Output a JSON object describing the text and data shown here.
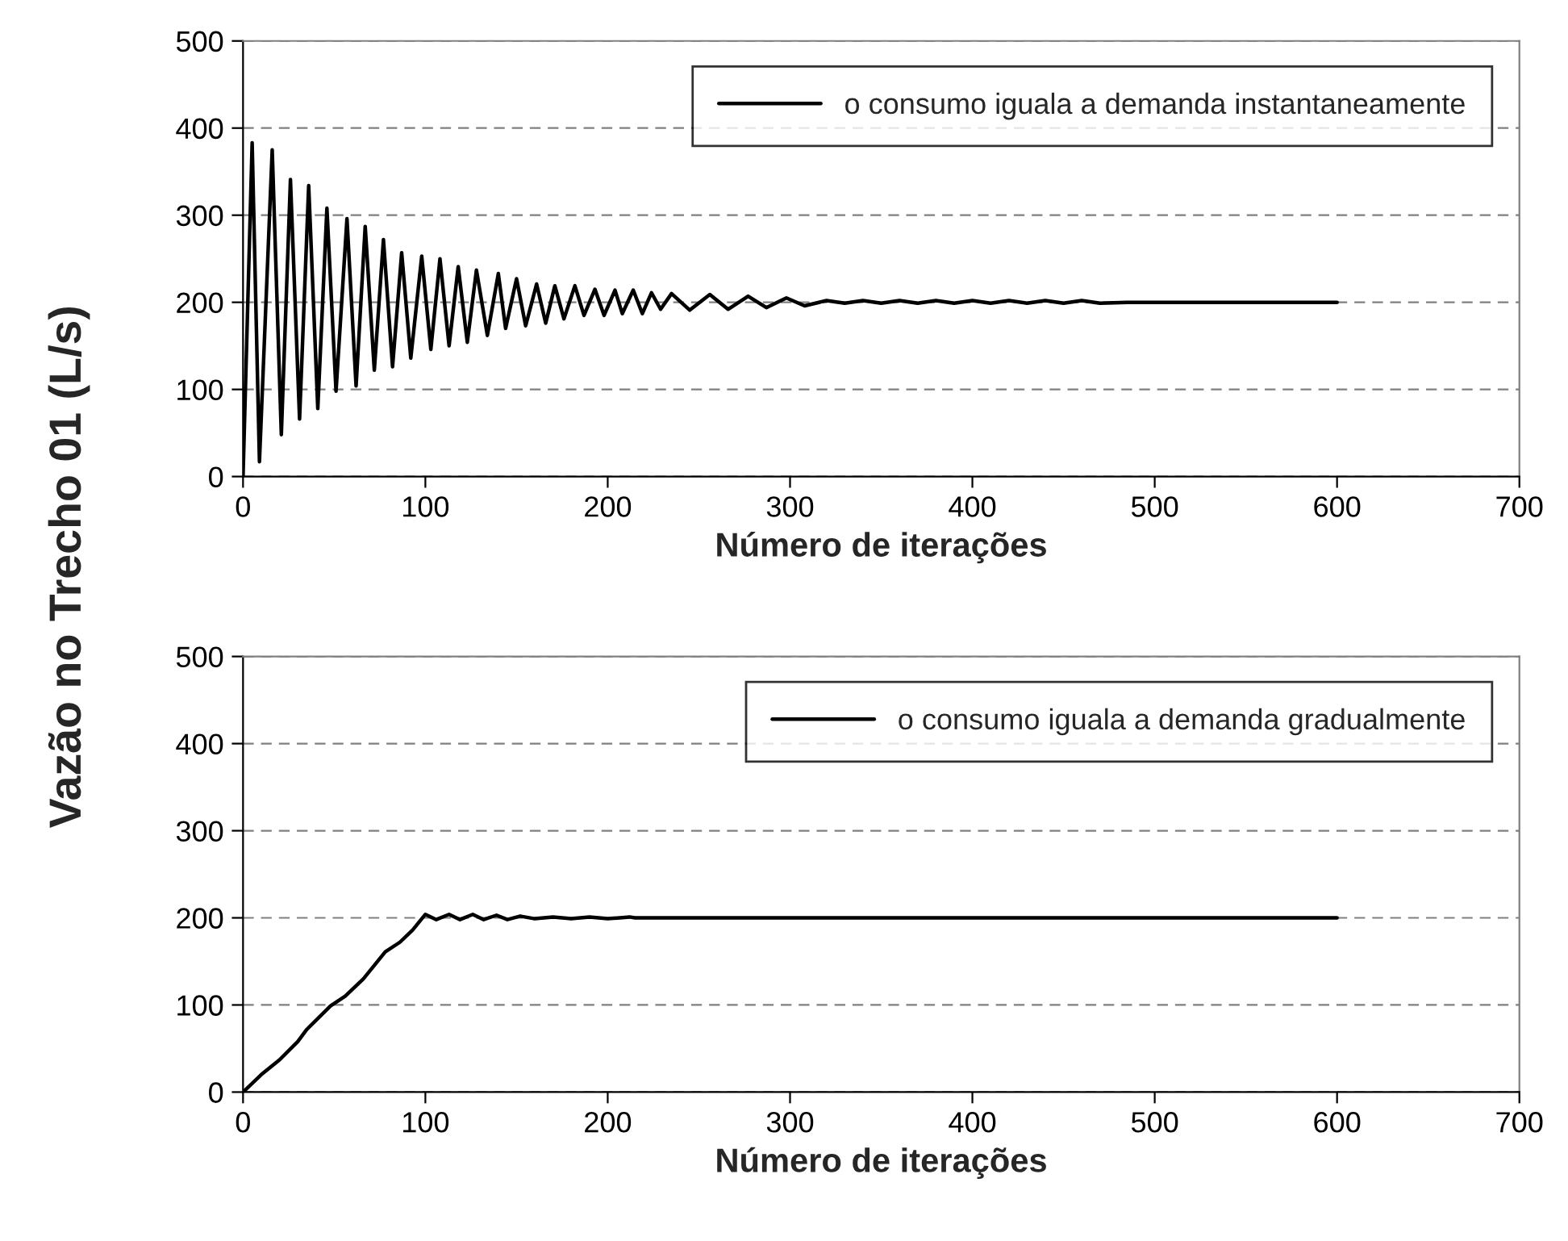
{
  "chart_data": [
    {
      "type": "line",
      "xlabel": "Número de iterações",
      "ylabel": "Vazão no Trecho 01 (L/s)",
      "xlim": [
        0,
        700
      ],
      "ylim": [
        0,
        500
      ],
      "xticks": [
        0,
        100,
        200,
        300,
        400,
        500,
        600,
        700
      ],
      "yticks": [
        0,
        100,
        200,
        300,
        400,
        500
      ],
      "grid": "y",
      "legend": "top right",
      "line_style": "solid",
      "marker": "none",
      "series": [
        {
          "name": "o consumo iguala a demanda instantaneamente",
          "color": "#000000",
          "x": [
            0,
            5,
            9,
            16,
            21,
            26,
            31,
            36,
            41,
            46,
            51,
            57,
            62,
            67,
            72,
            77,
            82,
            87,
            92,
            98,
            103,
            108,
            113,
            118,
            123,
            128,
            134,
            140,
            144,
            150,
            155,
            161,
            166,
            171,
            176,
            182,
            187,
            193,
            198,
            204,
            208,
            214,
            219,
            224,
            229,
            235,
            245,
            256,
            266,
            277,
            287,
            298,
            308,
            320,
            330,
            340,
            350,
            360,
            370,
            380,
            390,
            400,
            410,
            420,
            430,
            440,
            450,
            460,
            470,
            485,
            600
          ],
          "values": [
            0,
            383,
            17,
            375,
            48,
            341,
            66,
            334,
            78,
            308,
            98,
            296,
            104,
            287,
            122,
            272,
            126,
            257,
            136,
            253,
            146,
            250,
            150,
            241,
            154,
            237,
            162,
            233,
            170,
            227,
            173,
            221,
            176,
            219,
            181,
            219,
            185,
            215,
            185,
            214,
            187,
            214,
            187,
            211,
            192,
            210,
            191,
            209,
            192,
            207,
            194,
            205,
            196,
            202,
            199,
            202,
            199,
            202,
            199,
            202,
            199,
            202,
            199,
            202,
            199,
            202,
            199,
            202,
            199,
            200,
            200
          ]
        }
      ]
    },
    {
      "type": "line",
      "xlabel": "Número de iterações",
      "xlim": [
        0,
        700
      ],
      "ylim": [
        0,
        500
      ],
      "xticks": [
        0,
        100,
        200,
        300,
        400,
        500,
        600,
        700
      ],
      "yticks": [
        0,
        100,
        200,
        300,
        400,
        500
      ],
      "grid": "y",
      "legend": "top right",
      "line_style": "solid",
      "marker": "none",
      "series": [
        {
          "name": "o consumo iguala a demanda gradualmente",
          "color": "#000000",
          "x": [
            0,
            10,
            20,
            30,
            35,
            48,
            56,
            66,
            78,
            86,
            93,
            100,
            106,
            113,
            119,
            126,
            132,
            139,
            145,
            152,
            160,
            170,
            180,
            190,
            200,
            212,
            215,
            600
          ],
          "values": [
            0,
            20,
            37,
            58,
            72,
            99,
            110,
            130,
            161,
            172,
            186,
            204,
            198,
            204,
            198,
            204,
            198,
            203,
            198,
            202,
            199,
            201,
            199,
            201,
            199,
            201,
            200,
            200
          ]
        }
      ]
    }
  ]
}
